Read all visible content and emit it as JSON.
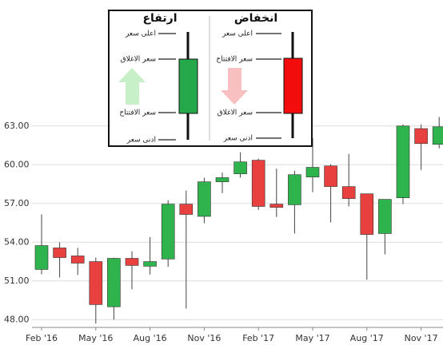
{
  "chart_data": {
    "type": "candlestick",
    "categories": [
      "Feb '16",
      null,
      null,
      "May '16",
      null,
      null,
      "Aug '16",
      null,
      null,
      "Nov '16",
      null,
      null,
      "Feb '17",
      null,
      null,
      "May '17",
      null,
      null,
      "Aug '17",
      null,
      null,
      "Nov '17",
      null
    ],
    "open": [
      51.89,
      53.56,
      52.94,
      52.5,
      49.0,
      52.75,
      52.14,
      52.7,
      56.95,
      56.0,
      58.68,
      59.3,
      60.35,
      56.95,
      56.9,
      59.05,
      59.91,
      58.31,
      57.75,
      54.67,
      57.44,
      62.8,
      61.58
    ],
    "high": [
      56.15,
      53.99,
      53.56,
      52.81,
      52.8,
      53.3,
      54.4,
      57.25,
      58.0,
      59.0,
      59.4,
      60.96,
      60.47,
      59.7,
      59.54,
      62.07,
      60.04,
      60.84,
      57.75,
      57.32,
      63.12,
      63.12,
      63.7
    ],
    "low": [
      51.52,
      51.27,
      51.46,
      47.7,
      48.0,
      50.35,
      51.5,
      52.1,
      48.86,
      55.47,
      57.8,
      59.0,
      56.5,
      55.96,
      54.67,
      57.88,
      55.53,
      56.77,
      51.09,
      53.06,
      56.95,
      59.6,
      61.27
    ],
    "close": [
      53.74,
      52.81,
      52.38,
      49.17,
      52.75,
      52.2,
      52.5,
      56.95,
      56.15,
      58.68,
      59.0,
      60.22,
      56.77,
      56.7,
      59.23,
      59.8,
      58.31,
      57.38,
      54.6,
      57.32,
      63.0,
      61.64,
      62.94
    ],
    "up_color": "#2fb34d",
    "down_color": "#e8403f",
    "ylim": [
      47.4,
      64.1
    ],
    "yticks": [
      {
        "value": 48,
        "label": "48.00"
      },
      {
        "value": 51,
        "label": "51.00"
      },
      {
        "value": 54,
        "label": "54.00"
      },
      {
        "value": 57,
        "label": "57.00"
      },
      {
        "value": 60,
        "label": "60.00"
      },
      {
        "value": 63,
        "label": "63.00"
      }
    ],
    "grid": true
  },
  "legend": {
    "decrease": {
      "title": "انخفاض",
      "labels": [
        "اعلى سعر",
        "سعر الافتتاح",
        "سعر الاغلاق",
        "ادنى سعر"
      ]
    },
    "increase": {
      "title": "ارتفاع",
      "labels": [
        "اعلى سعر",
        "سعر الاغلاق",
        "سعر الافتتاح",
        "ادنى سعر"
      ]
    }
  }
}
